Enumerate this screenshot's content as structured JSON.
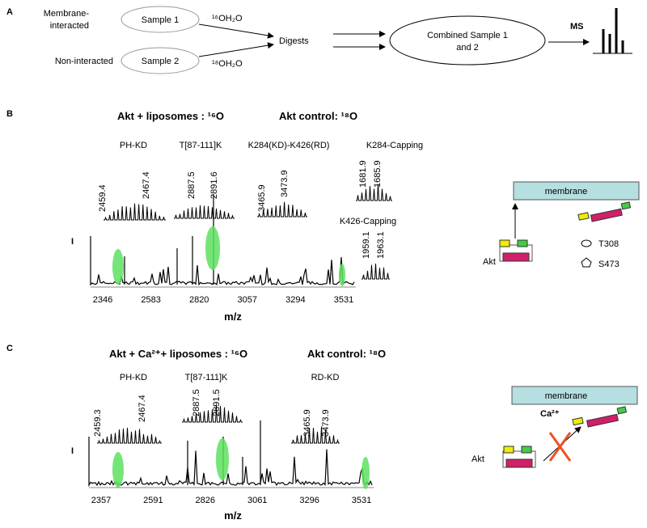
{
  "panel_a": {
    "label": "A",
    "sample1": {
      "condition": [
        "Membrane-",
        "interacted"
      ],
      "name": "Sample 1",
      "water": "¹⁶OH₂O"
    },
    "sample2": {
      "condition": [
        "Non-interacted"
      ],
      "name": "Sample 2",
      "water": "¹⁸OH₂O"
    },
    "digests": "Digests",
    "combined": [
      "Combined Sample 1",
      "and 2"
    ],
    "ms": "MS"
  },
  "panel_b": {
    "label": "B",
    "title_left": "Akt + liposomes : ¹⁶O",
    "title_right": "Akt control: ¹⁸O",
    "peptides": [
      {
        "name": "PH-KD",
        "masses": [
          2459.4,
          2467.4
        ]
      },
      {
        "name": "T[87-111]K",
        "masses": [
          2887.5,
          2891.6
        ]
      },
      {
        "name": "K284(KD)-K426(RD)",
        "masses": [
          3465.9,
          3473.9
        ]
      },
      {
        "name": "K284-Capping",
        "masses": [
          1681.9,
          1685.9
        ]
      },
      {
        "name": "K426-Capping",
        "masses": [
          1959.1,
          1963.1
        ]
      }
    ],
    "y_label": "I",
    "x_ticks": [
      2346,
      2583,
      2820,
      3057,
      3294,
      3531
    ],
    "x_label": "m/z",
    "diagram": {
      "membrane": "membrane",
      "protein": "Akt",
      "legend": [
        "T308",
        "S473"
      ]
    }
  },
  "panel_c": {
    "label": "C",
    "title_left": "Akt + Ca²⁺+ liposomes : ¹⁶O",
    "title_right": "Akt control: ¹⁸O",
    "peptides": [
      {
        "name": "PH-KD",
        "masses": [
          2459.3,
          2467.4
        ]
      },
      {
        "name": "T[87-111]K",
        "masses": [
          2887.5,
          2891.5
        ]
      },
      {
        "name": "RD-KD",
        "masses": [
          3465.9,
          3473.9
        ]
      }
    ],
    "y_label": "I",
    "x_ticks": [
      2357,
      2591,
      2826,
      3061,
      3296,
      3531
    ],
    "x_label": "m/z",
    "diagram": {
      "membrane": "membrane",
      "ion": "Ca²⁺",
      "protein": "Akt"
    }
  }
}
